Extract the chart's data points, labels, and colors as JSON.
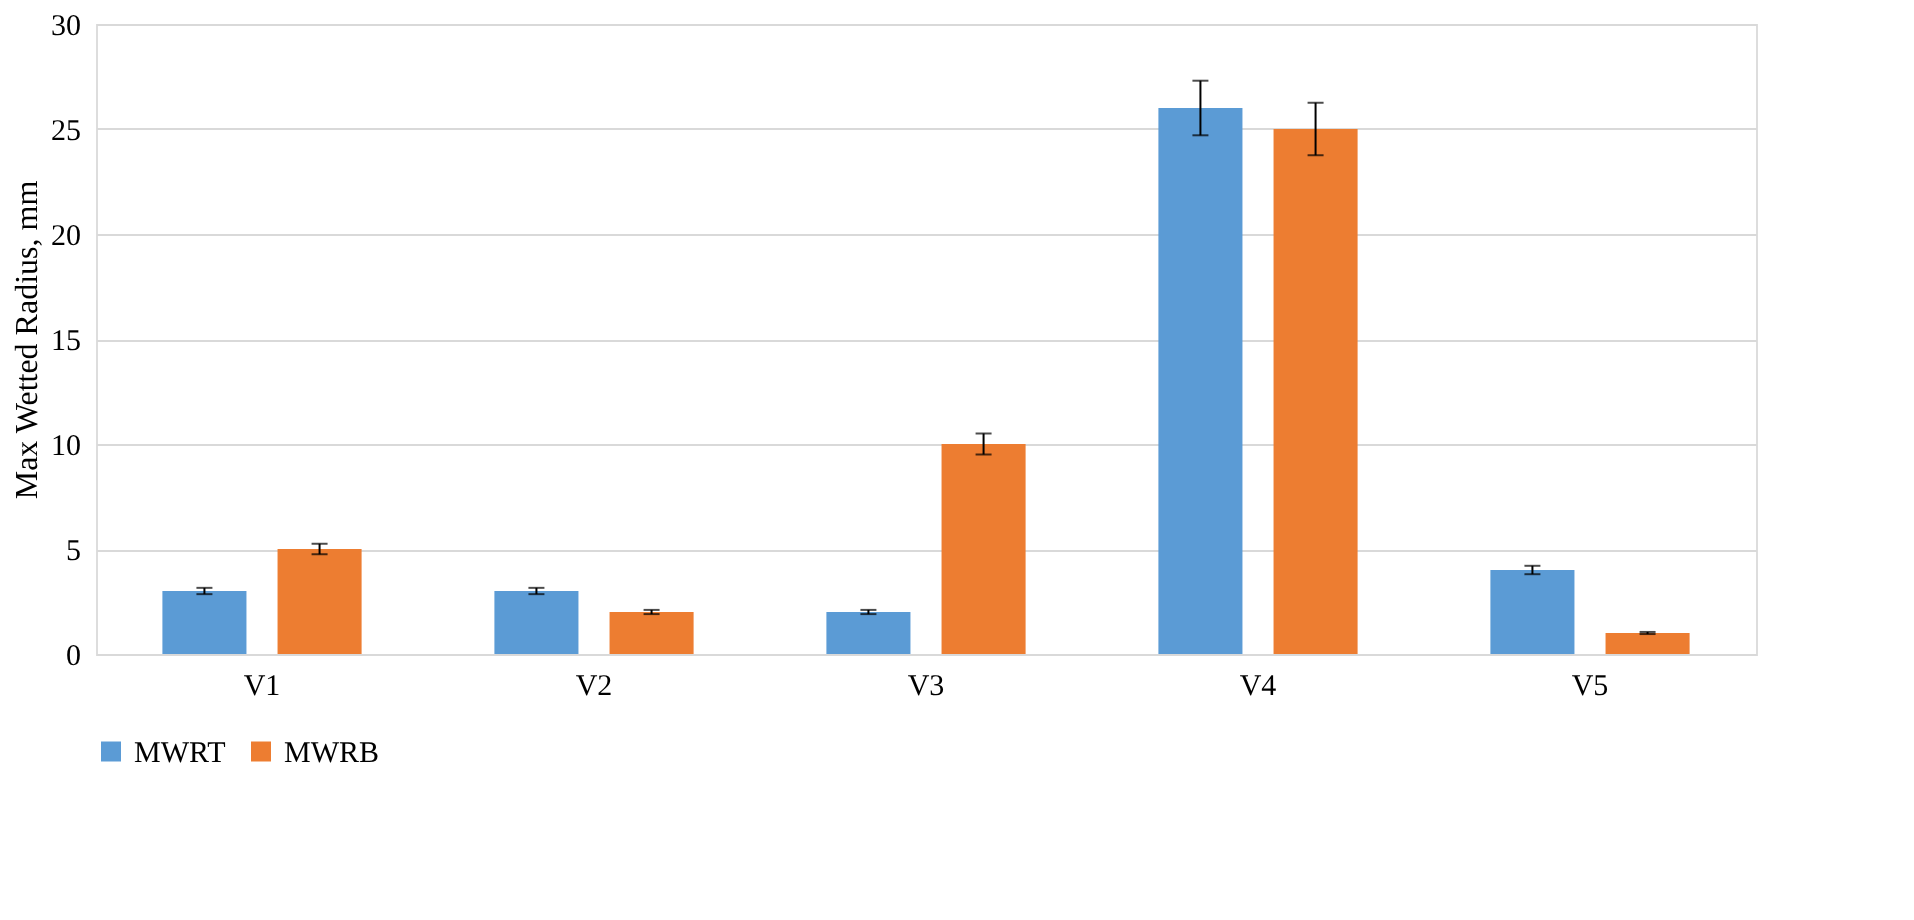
{
  "chart_data": {
    "type": "bar",
    "ylabel": "Max Wetted Radius,  mm",
    "categories": [
      "V1",
      "V2",
      "V3",
      "V4",
      "V5"
    ],
    "series": [
      {
        "name": "MWRT",
        "color": "#5b9bd5",
        "values": [
          3,
          3,
          2,
          26,
          4
        ],
        "errors": [
          0.15,
          0.15,
          0.1,
          1.3,
          0.2
        ]
      },
      {
        "name": "MWRB",
        "color": "#ed7d31",
        "values": [
          5,
          2,
          10,
          25,
          1
        ],
        "errors": [
          0.25,
          0.1,
          0.5,
          1.25,
          0.05
        ]
      }
    ],
    "ylim": [
      0,
      30
    ],
    "yticks": [
      0,
      5,
      10,
      15,
      20,
      25,
      30
    ],
    "grid": "y",
    "legend": "bottom"
  }
}
